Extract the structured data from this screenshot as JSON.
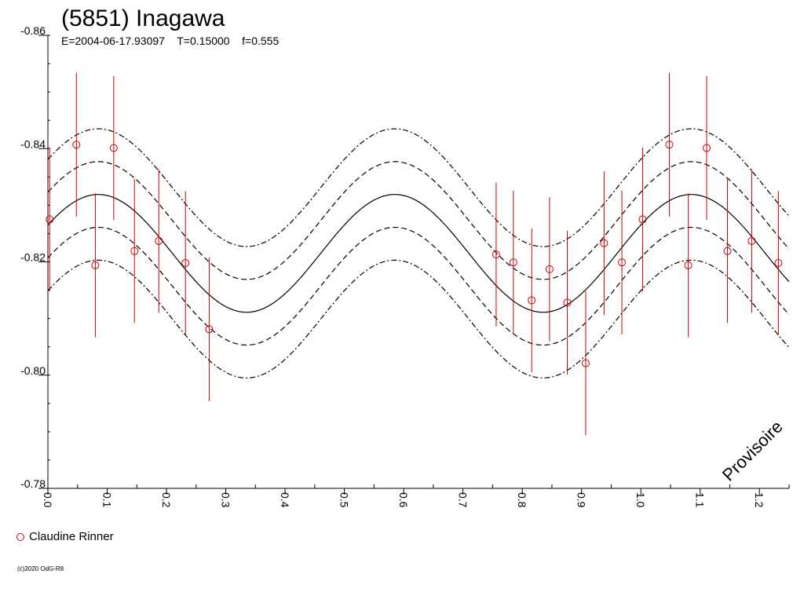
{
  "chart_data": {
    "type": "scatter",
    "title": "(5851) Inagawa",
    "subtitle": "E=2004-06-17.93097    T=0.15000    f=0.555",
    "xlim": [
      0.0,
      1.25
    ],
    "ylim": [
      -0.78,
      -0.86
    ],
    "y_axis_inverted": true,
    "x_ticks": [
      "0.0",
      "0.1",
      "0.2",
      "0.3",
      "0.4",
      "0.5",
      "0.6",
      "0.7",
      "0.8",
      "0.9",
      "1.0",
      "1.1",
      "1.2"
    ],
    "y_ticks": [
      "-0.86",
      "-0.84",
      "-0.82",
      "-0.80",
      "-0.78"
    ],
    "grid": false,
    "fit_curve": {
      "style": "sine",
      "mean": -0.8215,
      "amplitude": 0.0104,
      "peak_phase": 0.085,
      "period": 0.5,
      "offsets": [
        0,
        0.0058,
        0.0116
      ],
      "line_styles": [
        "solid",
        "dashed",
        "dashdot"
      ]
    },
    "series": [
      {
        "name": "Claudine Rinner",
        "color": "#d00000",
        "marker": "open-circle",
        "points": [
          {
            "x": 0.003,
            "y": -0.8275,
            "err": 0.0127
          },
          {
            "x": 0.048,
            "y": -0.8407,
            "err": 0.0127
          },
          {
            "x": 0.08,
            "y": -0.8194,
            "err": 0.0127
          },
          {
            "x": 0.111,
            "y": -0.8401,
            "err": 0.0127
          },
          {
            "x": 0.146,
            "y": -0.8219,
            "err": 0.0127
          },
          {
            "x": 0.187,
            "y": -0.8237,
            "err": 0.0127
          },
          {
            "x": 0.232,
            "y": -0.8198,
            "err": 0.0127
          },
          {
            "x": 0.272,
            "y": -0.8081,
            "err": 0.0127
          },
          {
            "x": 0.756,
            "y": -0.8213,
            "err": 0.0127
          },
          {
            "x": 0.785,
            "y": -0.8199,
            "err": 0.0127
          },
          {
            "x": 0.816,
            "y": -0.8132,
            "err": 0.0127
          },
          {
            "x": 0.846,
            "y": -0.8187,
            "err": 0.0127
          },
          {
            "x": 0.876,
            "y": -0.8128,
            "err": 0.0127
          },
          {
            "x": 0.907,
            "y": -0.8021,
            "err": 0.0127
          },
          {
            "x": 0.938,
            "y": -0.8233,
            "err": 0.0127
          },
          {
            "x": 0.968,
            "y": -0.8199,
            "err": 0.0127
          },
          {
            "x": 1.003,
            "y": -0.8275,
            "err": 0.0127
          },
          {
            "x": 1.048,
            "y": -0.8407,
            "err": 0.0127
          },
          {
            "x": 1.08,
            "y": -0.8194,
            "err": 0.0127
          },
          {
            "x": 1.111,
            "y": -0.8401,
            "err": 0.0127
          },
          {
            "x": 1.146,
            "y": -0.8219,
            "err": 0.0127
          },
          {
            "x": 1.187,
            "y": -0.8237,
            "err": 0.0127
          },
          {
            "x": 1.232,
            "y": -0.8198,
            "err": 0.0127
          }
        ]
      }
    ],
    "legend_placement": "bottom-left",
    "watermark": "Provisoire",
    "copyright": "(c)2020 OdG-R8"
  }
}
